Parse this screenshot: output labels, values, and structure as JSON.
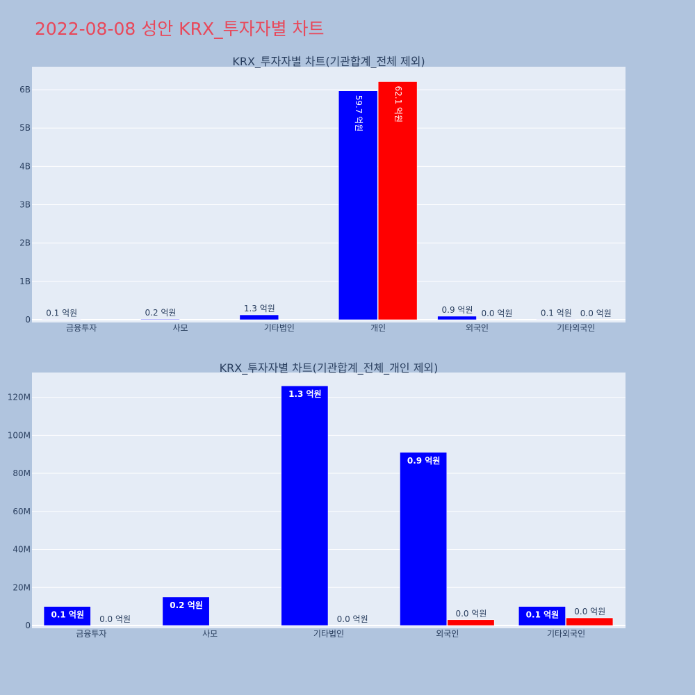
{
  "page": {
    "title": "2022-08-08 성안 KRX_투자자별 차트"
  },
  "colors": {
    "buy": "#0000ff",
    "sell": "#ff0000",
    "plot_bg": "#e5ecf6",
    "page_bg": "#b0c4de",
    "title": "#e8485a"
  },
  "chart_data": [
    {
      "type": "bar",
      "title": "KRX_투자자별 차트(기관합계_전체 제외)",
      "categories": [
        "금융투자",
        "사모",
        "기타법인",
        "개인",
        "외국인",
        "기타외국인"
      ],
      "series": [
        {
          "color": "#0000ff",
          "values": [
            10000000,
            15000000,
            126000000,
            5970000000,
            91000000,
            10000000
          ],
          "labels": [
            "0.1 억원",
            "0.2 억원",
            "1.3 억원",
            "59.7 억원",
            "0.9 억원",
            "0.1 억원"
          ]
        },
        {
          "color": "#ff0000",
          "values": [
            0,
            0,
            0,
            6210000000,
            3000000,
            4000000
          ],
          "labels": [
            "",
            "",
            "",
            "62.1 억원",
            "0.0 억원",
            "0.0 억원"
          ]
        }
      ],
      "ylim": [
        0,
        6600000000
      ],
      "yticks": [
        0,
        1000000000,
        2000000000,
        3000000000,
        4000000000,
        5000000000,
        6000000000
      ],
      "ytick_labels": [
        "0",
        "1B",
        "2B",
        "3B",
        "4B",
        "5B",
        "6B"
      ],
      "grid": true
    },
    {
      "type": "bar",
      "title": "KRX_투자자별 차트(기관합계_전체_개인 제외)",
      "categories": [
        "금융투자",
        "사모",
        "기타법인",
        "외국인",
        "기타외국인"
      ],
      "series": [
        {
          "color": "#0000ff",
          "values": [
            10000000,
            15000000,
            126000000,
            91000000,
            10000000
          ],
          "labels": [
            "0.1 억원",
            "0.2 억원",
            "1.3 억원",
            "0.9 억원",
            "0.1 억원"
          ]
        },
        {
          "color": "#ff0000",
          "values": [
            0,
            0,
            0,
            3000000,
            4000000
          ],
          "labels": [
            "0.0 억원",
            "",
            "0.0 억원",
            "0.0 억원",
            "0.0 억원"
          ]
        }
      ],
      "ylim": [
        0,
        133000000
      ],
      "yticks": [
        0,
        20000000,
        40000000,
        60000000,
        80000000,
        100000000,
        120000000
      ],
      "ytick_labels": [
        "0",
        "20M",
        "40M",
        "60M",
        "80M",
        "100M",
        "120M"
      ],
      "grid": true
    }
  ]
}
